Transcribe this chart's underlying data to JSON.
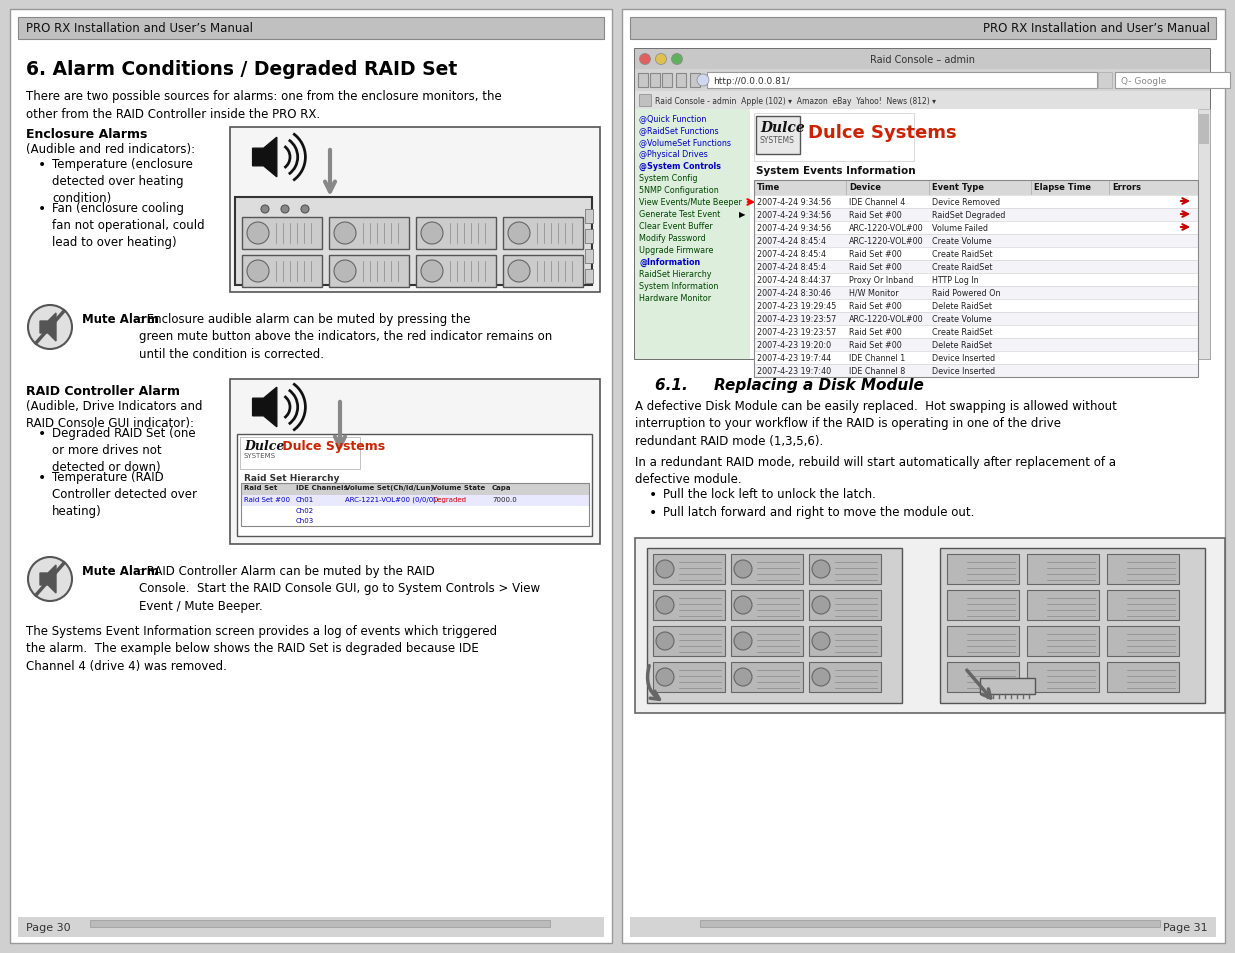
{
  "page_bg": "#ffffff",
  "header_bg": "#c8c8c8",
  "header_text_left": "PRO RX Installation and User’s Manual",
  "header_text_right": "PRO RX Installation and User’s Manual",
  "footer_text_left": "Page 30",
  "footer_text_right": "Page 31",
  "left_page": {
    "section_title": "6. Alarm Conditions / Degraded RAID Set",
    "intro": "There are two possible sources for alarms: one from the enclosure monitors, the\nother from the RAID Controller inside the PRO RX.",
    "enclosure_alarm_title": "Enclosure Alarms",
    "enclosure_alarm_sub": "(Audible and red indicators):",
    "enclosure_bullets": [
      "Temperature (enclosure\ndetected over heating\ncondition)",
      "Fan (enclosure cooling\nfan not operational, could\nlead to over heating)"
    ],
    "mute_alarm_bold": "Mute Alarm",
    "mute_alarm_text": ": Enclosure audible alarm can be muted by pressing the\ngreen mute button above the indicators, the red indicator remains on\nuntil the condition is corrected.",
    "raid_alarm_title": "RAID Controller Alarm",
    "raid_alarm_sub": "(Audible, Drive Indicators and\nRAID Console GUI indicator):",
    "raid_bullets": [
      "Degraded RAID Set (one\nor more drives not\ndetected or down)",
      "Temperature (RAID\nController detected over\nheating)"
    ],
    "mute_alarm2_bold": "Mute Alarm",
    "mute_alarm2_text": ": RAID Controller Alarm can be muted by the RAID\nConsole.  Start the RAID Console GUI, go to System Controls > View\nEvent / Mute Beeper.",
    "bottom_text": "The Systems Event Information screen provides a log of events which triggered\nthe alarm.  The example below shows the RAID Set is degraded because IDE\nChannel 4 (drive 4) was removed."
  },
  "right_page": {
    "section_title": "6.1.     Replacing a Disk Module",
    "intro": "A defective Disk Module can be easily replaced.  Hot swapping is allowed without\ninterruption to your workflow if the RAID is operating in one of the drive\nredundant RAID mode (1,3,5,6).",
    "para2": "In a redundant RAID mode, rebuild will start automatically after replacement of a\ndefective module.",
    "bullets": [
      "Pull the lock left to unlock the latch.",
      "Pull latch forward and right to move the module out."
    ]
  },
  "sidebar_items": [
    {
      "text": "@Quick Function",
      "bold": false,
      "color": "#0000bb",
      "link": false
    },
    {
      "text": "@RaidSet Functions",
      "bold": false,
      "color": "#0000bb",
      "link": false
    },
    {
      "text": "@VolumeSet Functions",
      "bold": false,
      "color": "#0000bb",
      "link": false
    },
    {
      "text": "@Physical Drives",
      "bold": false,
      "color": "#0000bb",
      "link": false
    },
    {
      "text": "@System Controls",
      "bold": true,
      "color": "#0000bb",
      "link": false
    },
    {
      "text": "System Config",
      "bold": false,
      "color": "#0000bb",
      "link": true
    },
    {
      "text": "5NMP Configuration",
      "bold": false,
      "color": "#0000bb",
      "link": true
    },
    {
      "text": "View Events/Mute Beeper",
      "bold": false,
      "color": "#0000bb",
      "link": true
    },
    {
      "text": "Generate Test Event",
      "bold": false,
      "color": "#0000bb",
      "link": true
    },
    {
      "text": "Clear Event Buffer",
      "bold": false,
      "color": "#0000bb",
      "link": true
    },
    {
      "text": "Modify Password",
      "bold": false,
      "color": "#0000bb",
      "link": true
    },
    {
      "text": "Upgrade Firmware",
      "bold": false,
      "color": "#0000bb",
      "link": true
    },
    {
      "text": "@Information",
      "bold": true,
      "color": "#0000bb",
      "link": false
    },
    {
      "text": "RaidSet Hierarchy",
      "bold": false,
      "color": "#0000bb",
      "link": true
    },
    {
      "text": "System Information",
      "bold": false,
      "color": "#0000bb",
      "link": true
    },
    {
      "text": "Hardware Monitor",
      "bold": false,
      "color": "#0000bb",
      "link": true
    }
  ],
  "events": [
    [
      "2007-4-24 9:34:56",
      "IDE Channel 4",
      "Device Removed",
      "",
      ""
    ],
    [
      "2007-4-24 9:34:56",
      "Raid Set #00",
      "RaidSet Degraded",
      "",
      ""
    ],
    [
      "2007-4-24 9:34:56",
      "ARC-1220-VOL#00",
      "Volume Failed",
      "",
      ""
    ],
    [
      "2007-4-24 8:45:4",
      "ARC-1220-VOL#00",
      "Create Volume",
      "",
      ""
    ],
    [
      "2007-4-24 8:45:4",
      "Raid Set #00",
      "Create RaidSet",
      "",
      ""
    ],
    [
      "2007-4-24 8:45:4",
      "Raid Set #00",
      "Create RaidSet",
      "",
      ""
    ],
    [
      "2007-4-24 8:44:37",
      "Proxy Or Inband",
      "HTTP Log In",
      "",
      ""
    ],
    [
      "2007-4-24 8:30:46",
      "H/W Monitor",
      "Raid Powered On",
      "",
      ""
    ],
    [
      "2007-4-23 19:29:45",
      "Raid Set #00",
      "Delete RaidSet",
      "",
      ""
    ],
    [
      "2007-4-23 19:23:57",
      "ARC-1220-VOL#00",
      "Create Volume",
      "",
      ""
    ],
    [
      "2007-4-23 19:23:57",
      "Raid Set #00",
      "Create RaidSet",
      "",
      ""
    ],
    [
      "2007-4-23 19:20:0",
      "Raid Set #00",
      "Delete RaidSet",
      "",
      ""
    ],
    [
      "2007-4-23 19:7:44",
      "IDE Channel 1",
      "Device Inserted",
      "",
      ""
    ],
    [
      "2007-4-23 19:7:40",
      "IDE Channel 8",
      "Device Inserted",
      "",
      ""
    ]
  ],
  "arrow_rows": [
    0,
    1,
    2
  ]
}
